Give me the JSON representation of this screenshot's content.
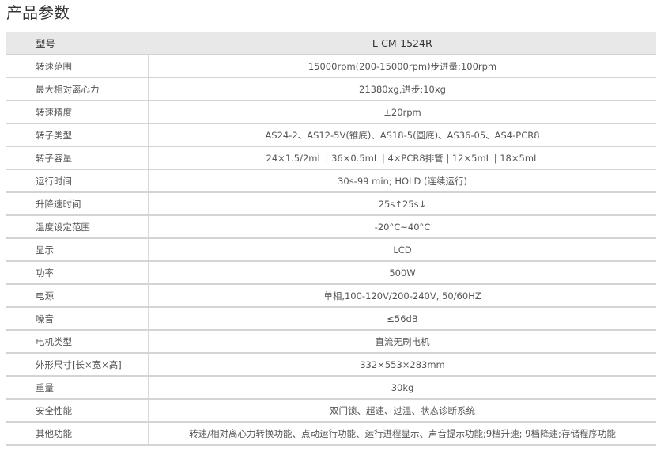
{
  "title": "产品参数",
  "header": {
    "label": "型号",
    "value": "L-CM-1524R"
  },
  "rows": [
    {
      "label": "转速范围",
      "value": "15000rpm(200-15000rpm)步进量:100rpm"
    },
    {
      "label": "最大相对离心力",
      "value": "21380xg,进步:10xg"
    },
    {
      "label": "转速精度",
      "value": "±20rpm"
    },
    {
      "label": "转子类型",
      "value": "AS24-2、AS12-5V(锥底)、AS18-5(圆底)、AS36-05、AS4-PCR8"
    },
    {
      "label": "转子容量",
      "value": "24×1.5/2mL | 36×0.5mL | 4×PCR8排管 | 12×5mL | 18×5mL"
    },
    {
      "label": "运行时间",
      "value": "30s-99 min; HOLD (连续运行)"
    },
    {
      "label": "升降速时间",
      "value": "25s↑25s↓"
    },
    {
      "label": "温度设定范围",
      "value": "-20°C~40°C"
    },
    {
      "label": "显示",
      "value": "LCD"
    },
    {
      "label": "功率",
      "value": "500W"
    },
    {
      "label": "电源",
      "value": "单相,100-120V/200-240V, 50/60HZ"
    },
    {
      "label": "噪音",
      "value": "≤56dB"
    },
    {
      "label": "电机类型",
      "value": "直流无刷电机"
    },
    {
      "label": "外形尺寸[长×宽×高]",
      "value": "332×553×283mm"
    },
    {
      "label": "重量",
      "value": "30kg"
    },
    {
      "label": "安全性能",
      "value": "双门锁、超速、过温、状态诊断系统"
    },
    {
      "label": "其他功能",
      "value": "转速/相对离心力转换功能、点动运行功能、运行进程显示、声音提示功能;9档升速; 9档降速;存储程序功能"
    }
  ]
}
